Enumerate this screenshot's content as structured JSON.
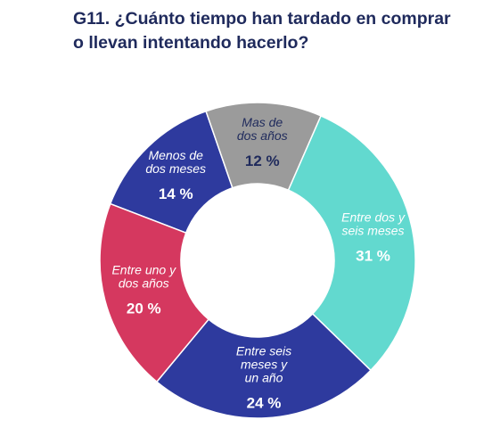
{
  "title": "G11. ¿Cuánto tiempo han tardado en comprar o llevan intentando hacerlo?",
  "title_lines": [
    "G11. ¿Cuánto tiempo han tardado en comprar",
    "o llevan intentando hacerlo?"
  ],
  "chart_data": {
    "type": "pie",
    "donut": true,
    "title": "G11. ¿Cuánto tiempo han tardado en comprar o llevan intentando hacerlo?",
    "unit": "%",
    "slices": [
      {
        "label_lines": [
          "Menos de",
          "dos meses"
        ],
        "label": "Menos de dos meses",
        "value": 14,
        "value_text": "14 %",
        "color": "#2e3a9e",
        "text_color": "#ffffff"
      },
      {
        "label_lines": [
          "Mas de",
          "dos años"
        ],
        "label": "Mas de dos años",
        "value": 12,
        "value_text": "12 %",
        "color": "#9b9b9b",
        "text_color": "#1f2a5c"
      },
      {
        "label_lines": [
          "Entre dos y",
          "seis meses"
        ],
        "label": "Entre dos y seis meses",
        "value": 31,
        "value_text": "31 %",
        "color": "#62d9cf",
        "text_color": "#ffffff"
      },
      {
        "label_lines": [
          "Entre seis",
          "meses y",
          "un año"
        ],
        "label": "Entre seis meses y un año",
        "value": 24,
        "value_text": "24 %",
        "color": "#2e3a9e",
        "text_color": "#ffffff"
      },
      {
        "label_lines": [
          "Entre uno y",
          "dos años"
        ],
        "label": "Entre uno y dos años",
        "value": 20,
        "value_text": "20 %",
        "color": "#d5385f",
        "text_color": "#ffffff"
      }
    ]
  }
}
